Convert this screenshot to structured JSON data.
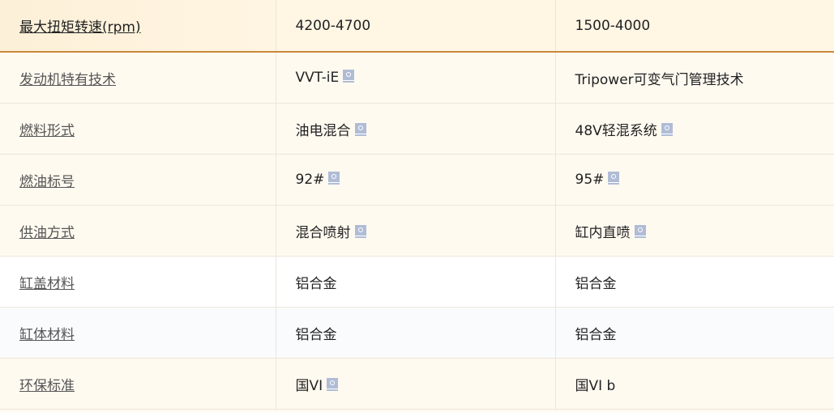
{
  "rows": [
    {
      "label": "最大扭矩转速(rpm)",
      "a": "4200-4700",
      "a_search": false,
      "b": "1500-4000",
      "b_search": false
    },
    {
      "label": "发动机特有技术",
      "a": "VVT-iE",
      "a_search": true,
      "b": "Tripower可变气门管理技术",
      "b_search": false
    },
    {
      "label": "燃料形式",
      "a": "油电混合",
      "a_search": true,
      "b": "48V轻混系统",
      "b_search": true
    },
    {
      "label": "燃油标号",
      "a": "92#",
      "a_search": true,
      "b": "95#",
      "b_search": true
    },
    {
      "label": "供油方式",
      "a": "混合喷射",
      "a_search": true,
      "b": "缸内直喷",
      "b_search": true
    },
    {
      "label": "缸盖材料",
      "a": "铝合金",
      "a_search": false,
      "b": "铝合金",
      "b_search": false
    },
    {
      "label": "缸体材料",
      "a": "铝合金",
      "a_search": false,
      "b": "铝合金",
      "b_search": false
    },
    {
      "label": "环保标准",
      "a": "国VI",
      "a_search": true,
      "b": "国VI b",
      "b_search": false
    }
  ],
  "colors": {
    "accent_line": "#c8893a",
    "search_icon": "#b0bcd6"
  },
  "icons": {
    "search": "search-icon"
  }
}
